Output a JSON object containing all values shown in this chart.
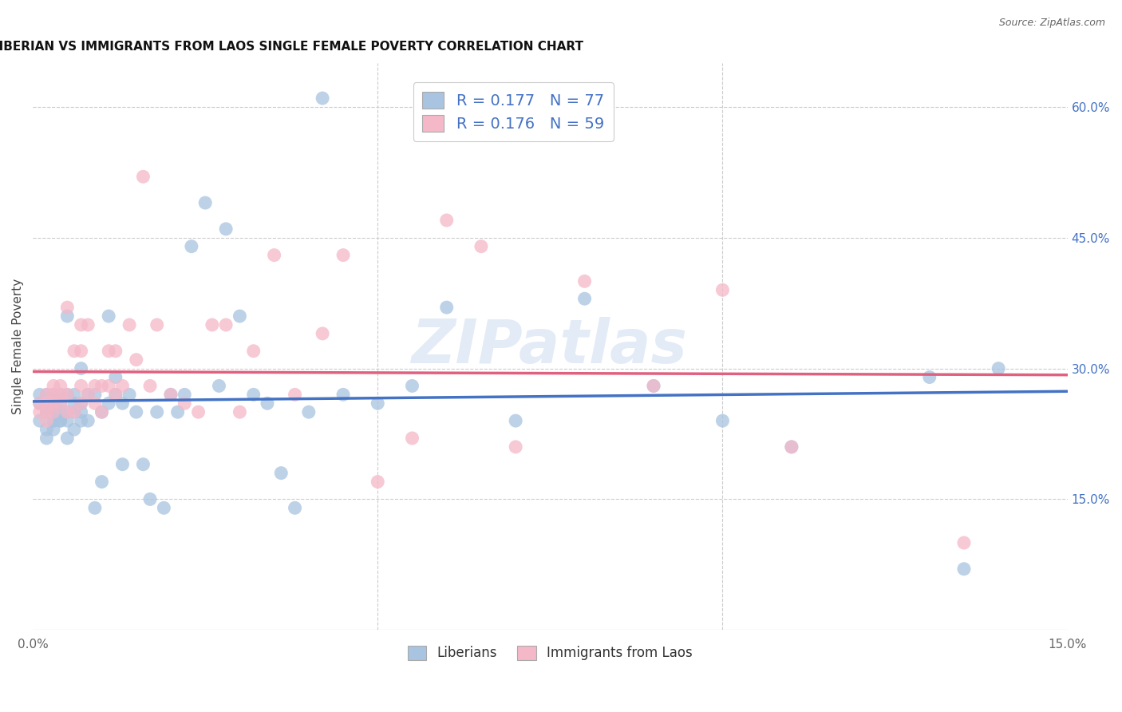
{
  "title": "LIBERIAN VS IMMIGRANTS FROM LAOS SINGLE FEMALE POVERTY CORRELATION CHART",
  "source": "Source: ZipAtlas.com",
  "ylabel_label": "Single Female Poverty",
  "xlim": [
    0.0,
    0.15
  ],
  "ylim": [
    0.0,
    0.65
  ],
  "y_ticks_right": [
    0.0,
    0.15,
    0.3,
    0.45,
    0.6
  ],
  "y_tick_right_labels": [
    "",
    "15.0%",
    "30.0%",
    "45.0%",
    "60.0%"
  ],
  "R_blue": 0.177,
  "N_blue": 77,
  "R_pink": 0.176,
  "N_pink": 59,
  "blue_color": "#a8c4e0",
  "pink_color": "#f4b8c8",
  "blue_line_color": "#4472c4",
  "pink_line_color": "#e06080",
  "legend_label_blue": "Liberians",
  "legend_label_pink": "Immigrants from Laos",
  "watermark": "ZIPatlas",
  "blue_x": [
    0.001,
    0.001,
    0.001,
    0.002,
    0.002,
    0.002,
    0.002,
    0.002,
    0.003,
    0.003,
    0.003,
    0.003,
    0.003,
    0.003,
    0.003,
    0.004,
    0.004,
    0.004,
    0.004,
    0.004,
    0.005,
    0.005,
    0.005,
    0.005,
    0.005,
    0.006,
    0.006,
    0.006,
    0.006,
    0.007,
    0.007,
    0.007,
    0.007,
    0.008,
    0.008,
    0.009,
    0.009,
    0.01,
    0.01,
    0.011,
    0.011,
    0.012,
    0.012,
    0.013,
    0.013,
    0.014,
    0.015,
    0.016,
    0.017,
    0.018,
    0.019,
    0.02,
    0.021,
    0.022,
    0.023,
    0.025,
    0.027,
    0.028,
    0.03,
    0.032,
    0.034,
    0.036,
    0.038,
    0.04,
    0.042,
    0.045,
    0.05,
    0.055,
    0.06,
    0.07,
    0.08,
    0.09,
    0.1,
    0.11,
    0.13,
    0.135,
    0.14
  ],
  "blue_y": [
    0.24,
    0.26,
    0.27,
    0.22,
    0.25,
    0.27,
    0.23,
    0.25,
    0.24,
    0.25,
    0.26,
    0.27,
    0.23,
    0.24,
    0.25,
    0.24,
    0.27,
    0.26,
    0.25,
    0.24,
    0.22,
    0.25,
    0.36,
    0.27,
    0.24,
    0.25,
    0.27,
    0.23,
    0.26,
    0.25,
    0.3,
    0.24,
    0.26,
    0.27,
    0.24,
    0.27,
    0.14,
    0.25,
    0.17,
    0.26,
    0.36,
    0.27,
    0.29,
    0.26,
    0.19,
    0.27,
    0.25,
    0.19,
    0.15,
    0.25,
    0.14,
    0.27,
    0.25,
    0.27,
    0.44,
    0.49,
    0.28,
    0.46,
    0.36,
    0.27,
    0.26,
    0.18,
    0.14,
    0.25,
    0.61,
    0.27,
    0.26,
    0.28,
    0.37,
    0.24,
    0.38,
    0.28,
    0.24,
    0.21,
    0.29,
    0.07,
    0.3
  ],
  "pink_x": [
    0.001,
    0.001,
    0.002,
    0.002,
    0.002,
    0.002,
    0.003,
    0.003,
    0.003,
    0.003,
    0.004,
    0.004,
    0.004,
    0.005,
    0.005,
    0.005,
    0.006,
    0.006,
    0.007,
    0.007,
    0.007,
    0.007,
    0.008,
    0.008,
    0.009,
    0.009,
    0.01,
    0.01,
    0.011,
    0.011,
    0.012,
    0.012,
    0.013,
    0.014,
    0.015,
    0.016,
    0.017,
    0.018,
    0.02,
    0.022,
    0.024,
    0.026,
    0.028,
    0.03,
    0.032,
    0.035,
    0.038,
    0.042,
    0.045,
    0.05,
    0.055,
    0.06,
    0.065,
    0.07,
    0.08,
    0.09,
    0.1,
    0.11,
    0.135
  ],
  "pink_y": [
    0.25,
    0.26,
    0.24,
    0.27,
    0.25,
    0.26,
    0.25,
    0.27,
    0.26,
    0.28,
    0.26,
    0.28,
    0.27,
    0.25,
    0.27,
    0.37,
    0.25,
    0.32,
    0.26,
    0.28,
    0.32,
    0.35,
    0.27,
    0.35,
    0.26,
    0.28,
    0.25,
    0.28,
    0.28,
    0.32,
    0.27,
    0.32,
    0.28,
    0.35,
    0.31,
    0.52,
    0.28,
    0.35,
    0.27,
    0.26,
    0.25,
    0.35,
    0.35,
    0.25,
    0.32,
    0.43,
    0.27,
    0.34,
    0.43,
    0.17,
    0.22,
    0.47,
    0.44,
    0.21,
    0.4,
    0.28,
    0.39,
    0.21,
    0.1
  ]
}
